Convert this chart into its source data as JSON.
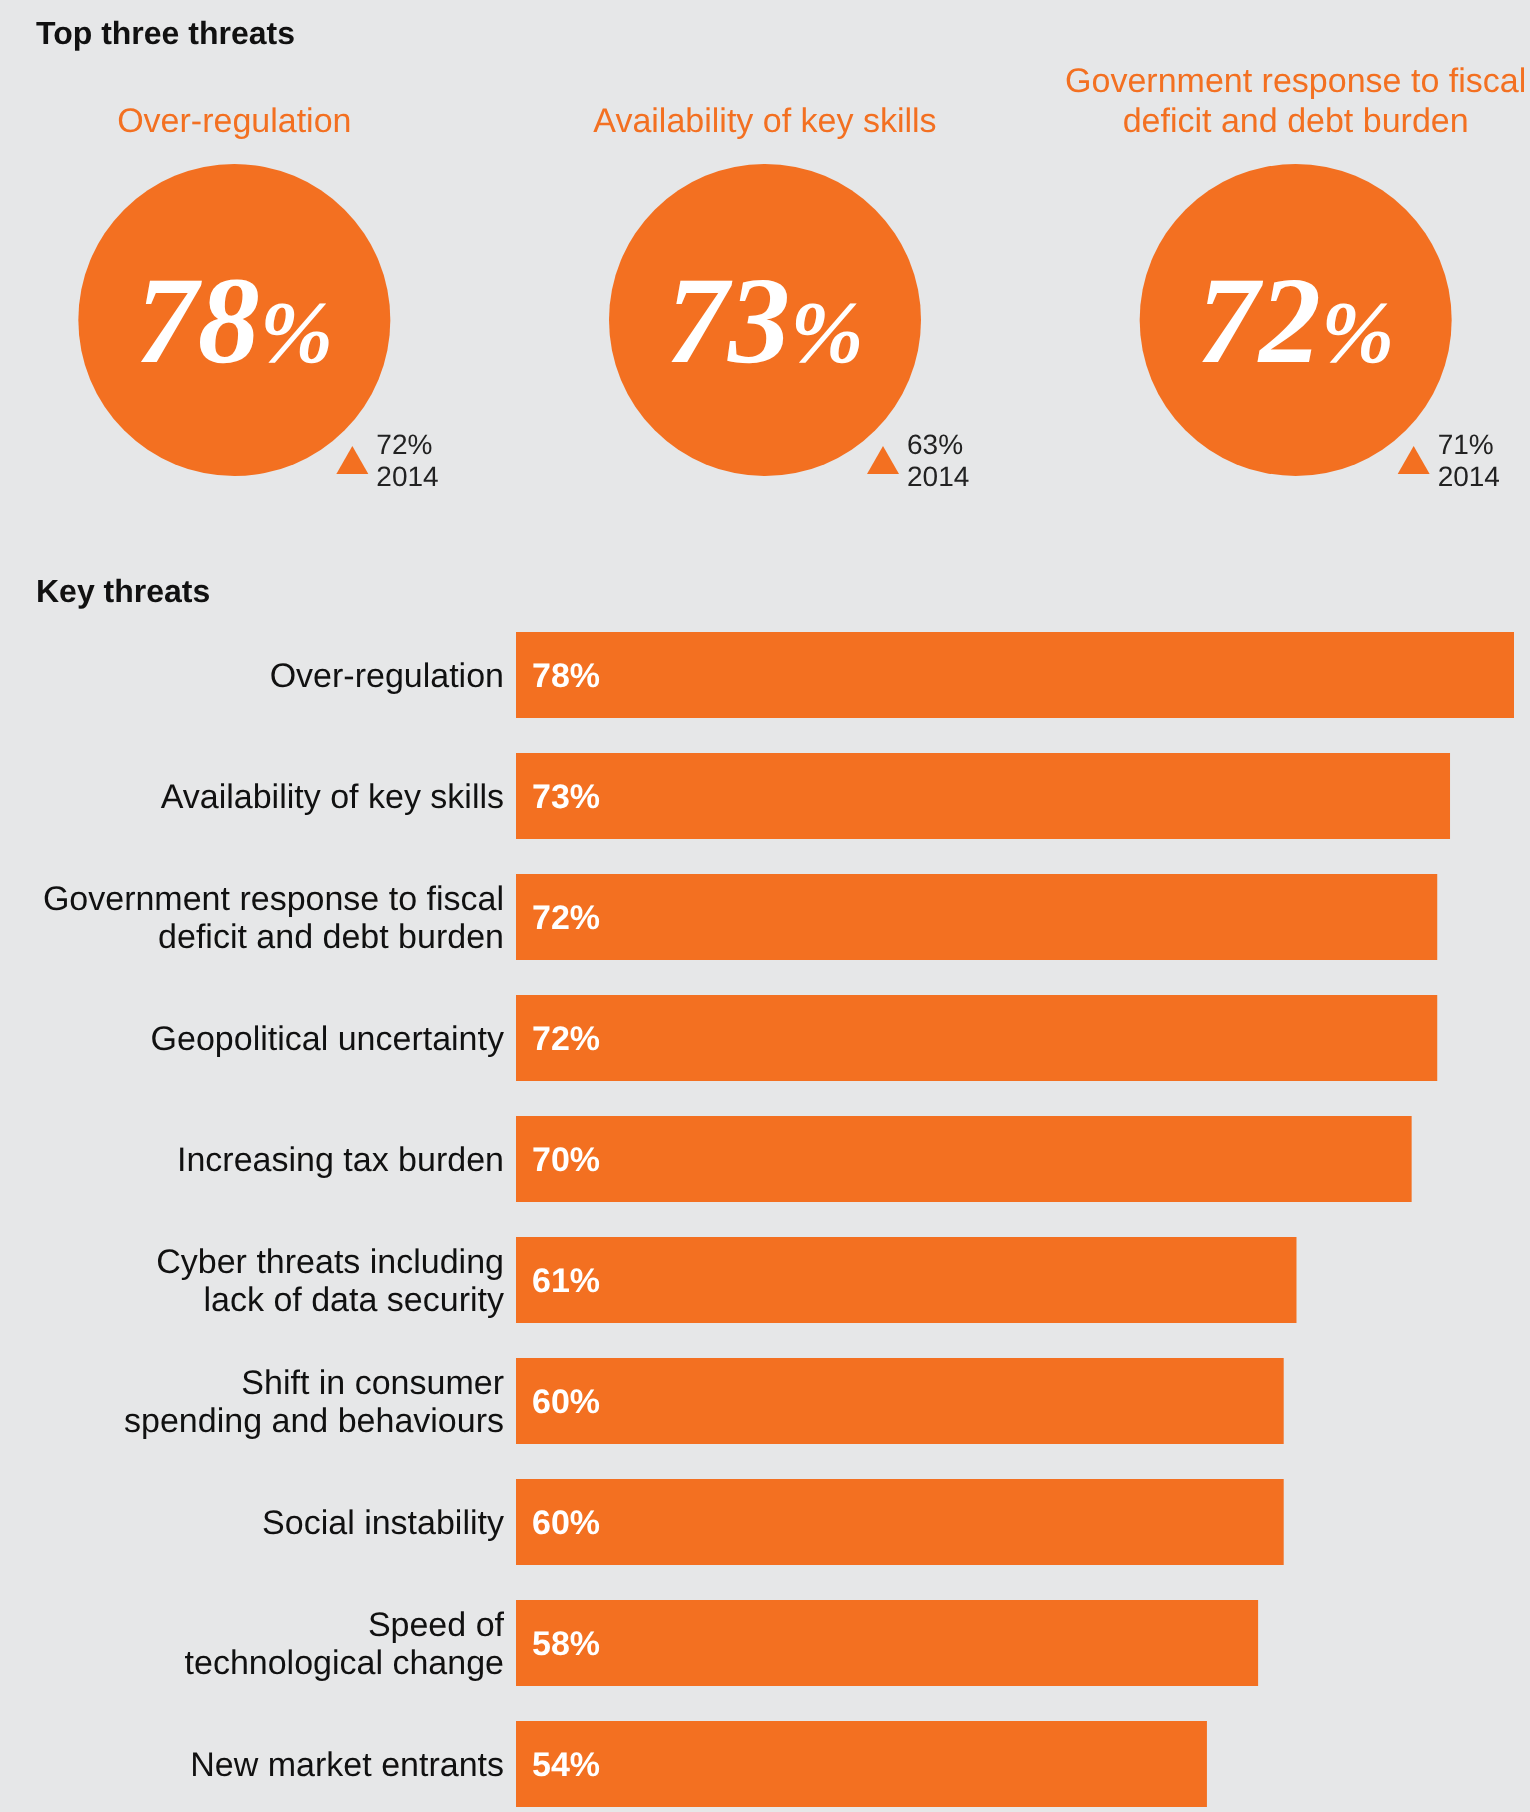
{
  "chart_data": [
    {
      "type": "other",
      "title": "Top three threats",
      "categories": [
        "Over-regulation",
        "Availability of key skills",
        "Government response to fiscal deficit and debt burden"
      ],
      "series": [
        {
          "color": "#f37021",
          "values": [
            78,
            73,
            72
          ],
          "value_labels": [
            "78%",
            "73%",
            "72%"
          ]
        },
        {
          "name": "2014",
          "color": "#f37021",
          "values": [
            72,
            63,
            71
          ],
          "value_labels": [
            "72%",
            "63%",
            "71%"
          ]
        }
      ]
    },
    {
      "type": "bar",
      "orientation": "horizontal",
      "title": "Key threats",
      "categories": [
        "Over-regulation",
        "Availability of key skills",
        "Government response to fiscal deficit and debt burden",
        "Geopolitical uncertainty",
        "Increasing tax burden",
        "Cyber threats including lack of data security",
        "Shift in consumer spending and behaviours",
        "Social instability",
        "Speed of technological change",
        "New market entrants"
      ],
      "values": [
        78,
        73,
        72,
        72,
        70,
        61,
        60,
        60,
        58,
        54
      ],
      "value_labels": [
        "78%",
        "73%",
        "72%",
        "72%",
        "70%",
        "61%",
        "60%",
        "60%",
        "58%",
        "54%"
      ],
      "color": "#f37021"
    }
  ]
}
